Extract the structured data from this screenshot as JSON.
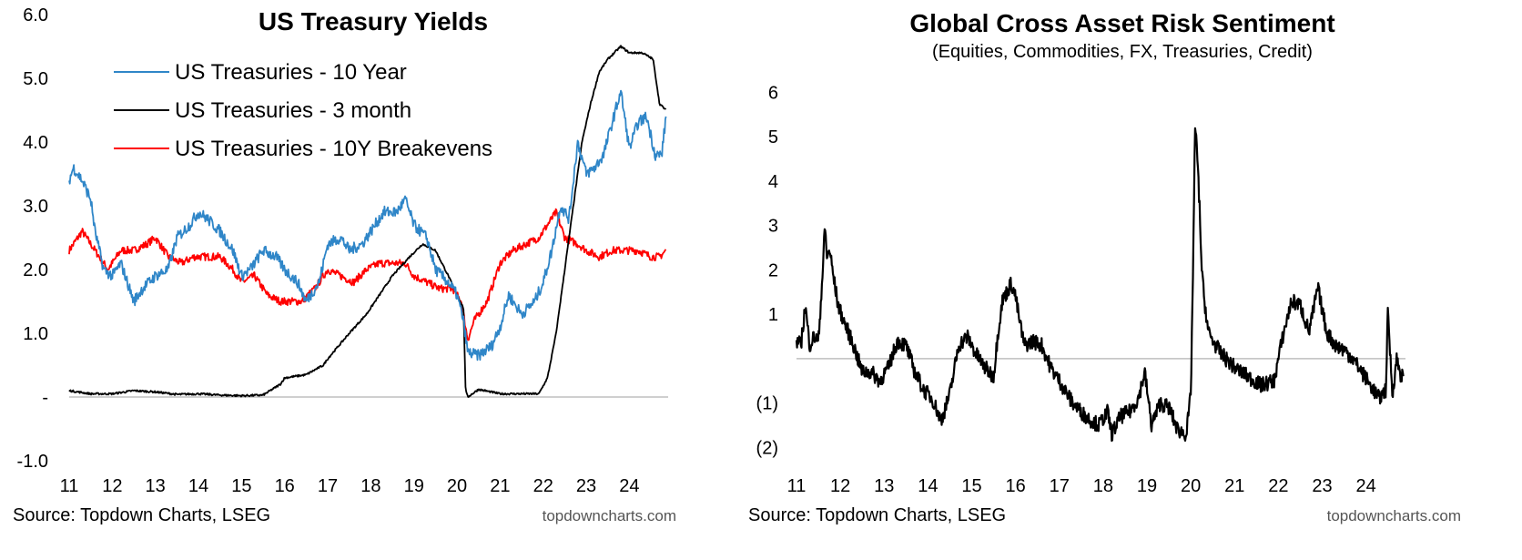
{
  "colors": {
    "ten_year": "#2f86c8",
    "three_month": "#000000",
    "breakevens": "#ff0000",
    "zero_line": "#bfbfbf",
    "sentiment": "#000000"
  },
  "chart_data": [
    {
      "type": "line",
      "title": "US Treasury Yields",
      "x_ticks": [
        "11",
        "12",
        "13",
        "14",
        "15",
        "16",
        "17",
        "18",
        "19",
        "20",
        "21",
        "22",
        "23",
        "24"
      ],
      "y_ticks": [
        "6.0",
        "5.0",
        "4.0",
        "3.0",
        "2.0",
        "1.0",
        "-",
        "-1.0"
      ],
      "ylim": [
        -1.0,
        6.0
      ],
      "xlim": [
        2011.0,
        2024.9
      ],
      "legend_position": "top-left",
      "source": "Source: Topdown Charts, LSEG",
      "watermark": "topdowncharts.com",
      "series": [
        {
          "name": "US Treasuries - 10 Year",
          "color_key": "ten_year",
          "x": [
            2011.0,
            2011.1,
            2011.3,
            2011.5,
            2011.6,
            2011.8,
            2012.0,
            2012.2,
            2012.4,
            2012.5,
            2012.7,
            2013.0,
            2013.3,
            2013.5,
            2013.8,
            2014.0,
            2014.2,
            2014.5,
            2014.8,
            2015.0,
            2015.2,
            2015.5,
            2015.8,
            2016.0,
            2016.3,
            2016.5,
            2016.8,
            2017.0,
            2017.3,
            2017.5,
            2017.8,
            2018.0,
            2018.3,
            2018.6,
            2018.8,
            2019.0,
            2019.3,
            2019.5,
            2019.8,
            2020.0,
            2020.15,
            2020.25,
            2020.5,
            2020.8,
            2021.0,
            2021.2,
            2021.5,
            2021.8,
            2022.0,
            2022.2,
            2022.4,
            2022.6,
            2022.8,
            2023.0,
            2023.2,
            2023.4,
            2023.6,
            2023.8,
            2024.0,
            2024.2,
            2024.4,
            2024.6,
            2024.75,
            2024.85
          ],
          "y": [
            3.4,
            3.6,
            3.4,
            3.1,
            2.6,
            2.0,
            1.9,
            2.1,
            1.7,
            1.5,
            1.7,
            1.9,
            2.0,
            2.5,
            2.7,
            2.9,
            2.8,
            2.6,
            2.3,
            1.9,
            2.0,
            2.3,
            2.2,
            2.0,
            1.8,
            1.5,
            1.8,
            2.4,
            2.5,
            2.3,
            2.4,
            2.6,
            2.9,
            2.9,
            3.1,
            2.7,
            2.5,
            2.0,
            1.8,
            1.6,
            1.2,
            0.7,
            0.65,
            0.8,
            1.1,
            1.6,
            1.3,
            1.5,
            1.8,
            2.3,
            3.0,
            2.8,
            4.0,
            3.5,
            3.6,
            3.8,
            4.3,
            4.8,
            3.9,
            4.3,
            4.4,
            3.8,
            3.8,
            4.4
          ]
        },
        {
          "name": "US Treasuries - 3 month",
          "color_key": "three_month",
          "x": [
            2011.0,
            2011.5,
            2012.0,
            2012.5,
            2013.0,
            2013.5,
            2014.0,
            2014.5,
            2015.0,
            2015.5,
            2015.9,
            2016.0,
            2016.5,
            2016.9,
            2017.0,
            2017.5,
            2017.9,
            2018.2,
            2018.5,
            2018.9,
            2019.2,
            2019.5,
            2019.8,
            2020.0,
            2020.15,
            2020.2,
            2020.25,
            2020.5,
            2021.0,
            2021.5,
            2021.9,
            2022.1,
            2022.3,
            2022.5,
            2022.7,
            2022.9,
            2023.1,
            2023.3,
            2023.5,
            2023.8,
            2024.0,
            2024.3,
            2024.55,
            2024.7,
            2024.85
          ],
          "y": [
            0.1,
            0.05,
            0.05,
            0.1,
            0.08,
            0.04,
            0.05,
            0.03,
            0.02,
            0.03,
            0.2,
            0.3,
            0.35,
            0.5,
            0.6,
            1.0,
            1.3,
            1.6,
            1.9,
            2.2,
            2.4,
            2.3,
            1.9,
            1.6,
            1.4,
            0.1,
            0.0,
            0.12,
            0.05,
            0.05,
            0.05,
            0.3,
            1.0,
            2.0,
            3.0,
            4.0,
            4.6,
            5.1,
            5.3,
            5.5,
            5.4,
            5.4,
            5.3,
            4.6,
            4.5
          ]
        },
        {
          "name": "US Treasuries - 10Y Breakevens",
          "color_key": "breakevens",
          "x": [
            2011.0,
            2011.3,
            2011.6,
            2011.9,
            2012.2,
            2012.5,
            2012.8,
            2013.0,
            2013.3,
            2013.6,
            2013.9,
            2014.2,
            2014.5,
            2014.8,
            2015.0,
            2015.3,
            2015.6,
            2015.9,
            2016.1,
            2016.4,
            2016.7,
            2017.0,
            2017.3,
            2017.6,
            2017.9,
            2018.2,
            2018.5,
            2018.8,
            2019.0,
            2019.3,
            2019.6,
            2019.9,
            2020.1,
            2020.25,
            2020.4,
            2020.7,
            2021.0,
            2021.3,
            2021.6,
            2021.9,
            2022.1,
            2022.3,
            2022.5,
            2022.8,
            2023.0,
            2023.3,
            2023.6,
            2023.9,
            2024.2,
            2024.5,
            2024.7,
            2024.85
          ],
          "y": [
            2.3,
            2.6,
            2.3,
            2.0,
            2.3,
            2.3,
            2.4,
            2.5,
            2.2,
            2.1,
            2.2,
            2.2,
            2.2,
            2.0,
            1.8,
            1.9,
            1.6,
            1.5,
            1.5,
            1.5,
            1.7,
            2.0,
            1.9,
            1.8,
            2.0,
            2.1,
            2.1,
            2.1,
            1.9,
            1.8,
            1.7,
            1.7,
            1.5,
            0.9,
            1.2,
            1.5,
            2.1,
            2.3,
            2.4,
            2.5,
            2.7,
            2.9,
            2.5,
            2.4,
            2.3,
            2.2,
            2.3,
            2.3,
            2.3,
            2.2,
            2.2,
            2.3
          ]
        }
      ]
    },
    {
      "type": "line",
      "title": "Global Cross Asset Risk Sentiment",
      "subtitle": "(Equities, Commodities, FX, Treasuries, Credit)",
      "x_ticks": [
        "11",
        "12",
        "13",
        "14",
        "15",
        "16",
        "17",
        "18",
        "19",
        "20",
        "21",
        "22",
        "23",
        "24"
      ],
      "y_ticks": [
        "6",
        "5",
        "4",
        "3",
        "2",
        "1",
        "(1)",
        "(2)"
      ],
      "y_tick_values": [
        6,
        5,
        4,
        3,
        2,
        1,
        -1,
        -2
      ],
      "ylim": [
        -2.3,
        6.4
      ],
      "zero_value": 0,
      "xlim": [
        2011.0,
        2024.9
      ],
      "source": "Source: Topdown Charts, LSEG",
      "watermark": "topdowncharts.com",
      "series": [
        {
          "color_key": "sentiment",
          "x": [
            2011.0,
            2011.1,
            2011.2,
            2011.3,
            2011.4,
            2011.5,
            2011.6,
            2011.65,
            2011.7,
            2011.75,
            2011.85,
            2011.95,
            2012.1,
            2012.3,
            2012.5,
            2012.7,
            2012.9,
            2013.1,
            2013.3,
            2013.5,
            2013.7,
            2013.9,
            2014.1,
            2014.3,
            2014.5,
            2014.7,
            2014.9,
            2015.1,
            2015.3,
            2015.5,
            2015.6,
            2015.7,
            2015.9,
            2016.0,
            2016.1,
            2016.2,
            2016.4,
            2016.6,
            2016.8,
            2017.0,
            2017.3,
            2017.6,
            2017.9,
            2018.1,
            2018.2,
            2018.4,
            2018.6,
            2018.8,
            2018.95,
            2019.1,
            2019.3,
            2019.5,
            2019.7,
            2019.9,
            2020.0,
            2020.05,
            2020.1,
            2020.15,
            2020.2,
            2020.25,
            2020.3,
            2020.4,
            2020.5,
            2020.7,
            2021.0,
            2021.3,
            2021.6,
            2021.9,
            2022.1,
            2022.3,
            2022.5,
            2022.7,
            2022.9,
            2023.1,
            2023.3,
            2023.5,
            2023.7,
            2023.9,
            2024.1,
            2024.3,
            2024.45,
            2024.5,
            2024.6,
            2024.7,
            2024.8,
            2024.85
          ],
          "y": [
            0.4,
            0.3,
            1.2,
            0.3,
            0.5,
            0.4,
            2.0,
            3.0,
            2.2,
            2.5,
            1.8,
            1.2,
            0.8,
            0.3,
            -0.3,
            -0.3,
            -0.5,
            -0.2,
            0.4,
            0.3,
            -0.3,
            -0.7,
            -0.9,
            -1.4,
            -0.8,
            0.3,
            0.5,
            0.1,
            -0.2,
            -0.4,
            0.6,
            1.3,
            1.7,
            1.4,
            0.8,
            0.3,
            0.4,
            0.3,
            -0.2,
            -0.5,
            -1.0,
            -1.3,
            -1.5,
            -1.2,
            -1.7,
            -1.3,
            -1.2,
            -0.9,
            -0.3,
            -1.5,
            -1.0,
            -1.1,
            -1.6,
            -1.7,
            -0.8,
            2.0,
            5.3,
            4.5,
            3.4,
            2.0,
            1.4,
            0.6,
            0.4,
            0.1,
            -0.2,
            -0.4,
            -0.6,
            -0.5,
            0.5,
            1.3,
            1.2,
            0.6,
            1.6,
            0.6,
            0.3,
            0.2,
            0.0,
            -0.3,
            -0.6,
            -0.9,
            -0.7,
            1.1,
            -0.8,
            0.0,
            -0.4,
            -0.4
          ]
        }
      ]
    }
  ]
}
